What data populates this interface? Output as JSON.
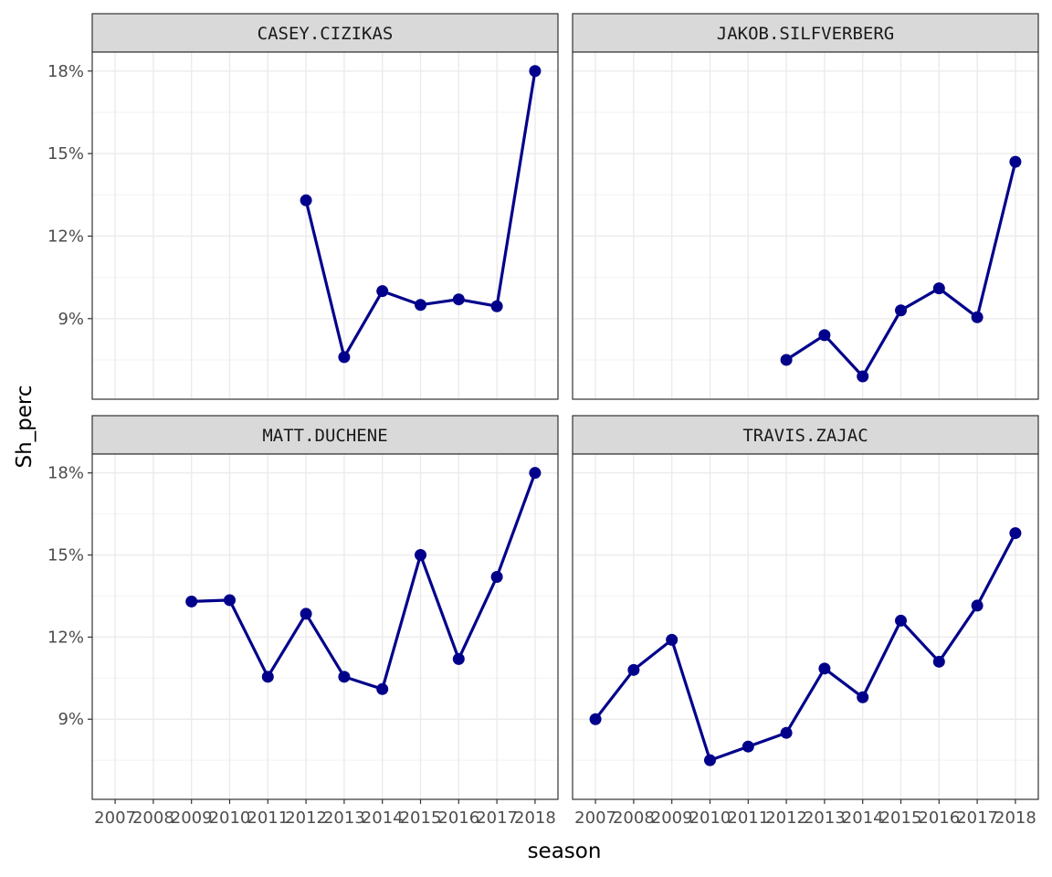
{
  "chart_data": {
    "type": "line",
    "facet": "wrap",
    "xlabel": "season",
    "ylabel": "Sh_perc",
    "x_ticks": [
      2007,
      2008,
      2009,
      2010,
      2011,
      2012,
      2013,
      2014,
      2015,
      2016,
      2017,
      2018
    ],
    "x_tick_labels": [
      "2007",
      "2008",
      "2009",
      "2010",
      "2011",
      "2012",
      "2013",
      "2014",
      "2015",
      "2016",
      "2017",
      "2018"
    ],
    "y_ticks": [
      0.09,
      0.12,
      0.15,
      0.18
    ],
    "y_tick_labels": [
      "9%",
      "12%",
      "15%",
      "18%"
    ],
    "xlim": [
      2006.4,
      2018.6
    ],
    "ylim": [
      0.0607,
      0.1869
    ],
    "grid": true,
    "line_color": "#00008B",
    "panels": [
      {
        "name": "CASEY.CIZIKAS",
        "x": [
          2012,
          2013,
          2014,
          2015,
          2016,
          2017,
          2018
        ],
        "y": [
          0.133,
          0.076,
          0.1,
          0.095,
          0.097,
          0.0945,
          0.18
        ]
      },
      {
        "name": "JAKOB.SILFVERBERG",
        "x": [
          2012,
          2013,
          2014,
          2015,
          2016,
          2017,
          2018
        ],
        "y": [
          0.075,
          0.084,
          0.069,
          0.093,
          0.101,
          0.0905,
          0.147
        ]
      },
      {
        "name": "MATT.DUCHENE",
        "x": [
          2009,
          2010,
          2011,
          2012,
          2013,
          2014,
          2015,
          2016,
          2017,
          2018
        ],
        "y": [
          0.133,
          0.1335,
          0.1055,
          0.1285,
          0.1055,
          0.101,
          0.15,
          0.112,
          0.142,
          0.18
        ]
      },
      {
        "name": "TRAVIS.ZAJAC",
        "x": [
          2007,
          2008,
          2009,
          2010,
          2011,
          2012,
          2013,
          2014,
          2015,
          2016,
          2017,
          2018
        ],
        "y": [
          0.09,
          0.108,
          0.119,
          0.075,
          0.08,
          0.085,
          0.1085,
          0.098,
          0.126,
          0.111,
          0.1315,
          0.158
        ]
      }
    ]
  }
}
